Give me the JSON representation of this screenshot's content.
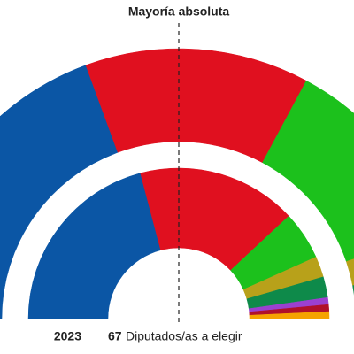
{
  "chart_data": {
    "type": "parliament",
    "title": "Mayoría absoluta",
    "year_label": "2023",
    "total_seats": 67,
    "total_label": "Diputados/as a elegir",
    "series": [
      {
        "colors": [
          "#0b56a5",
          "#e0101f",
          "#1cc11c",
          "#b8a11a",
          "#0e8a4a"
        ],
        "values": [
          26,
          18,
          16,
          3,
          4
        ]
      },
      {
        "colors": [
          "#0b56a5",
          "#e0101f",
          "#1cc11c",
          "#b8a11a",
          "#0e8a4a",
          "#9b40d0",
          "#b0102a",
          "#f5a300"
        ],
        "values": [
          28,
          23,
          7,
          3,
          3,
          1,
          1,
          1
        ]
      }
    ]
  }
}
